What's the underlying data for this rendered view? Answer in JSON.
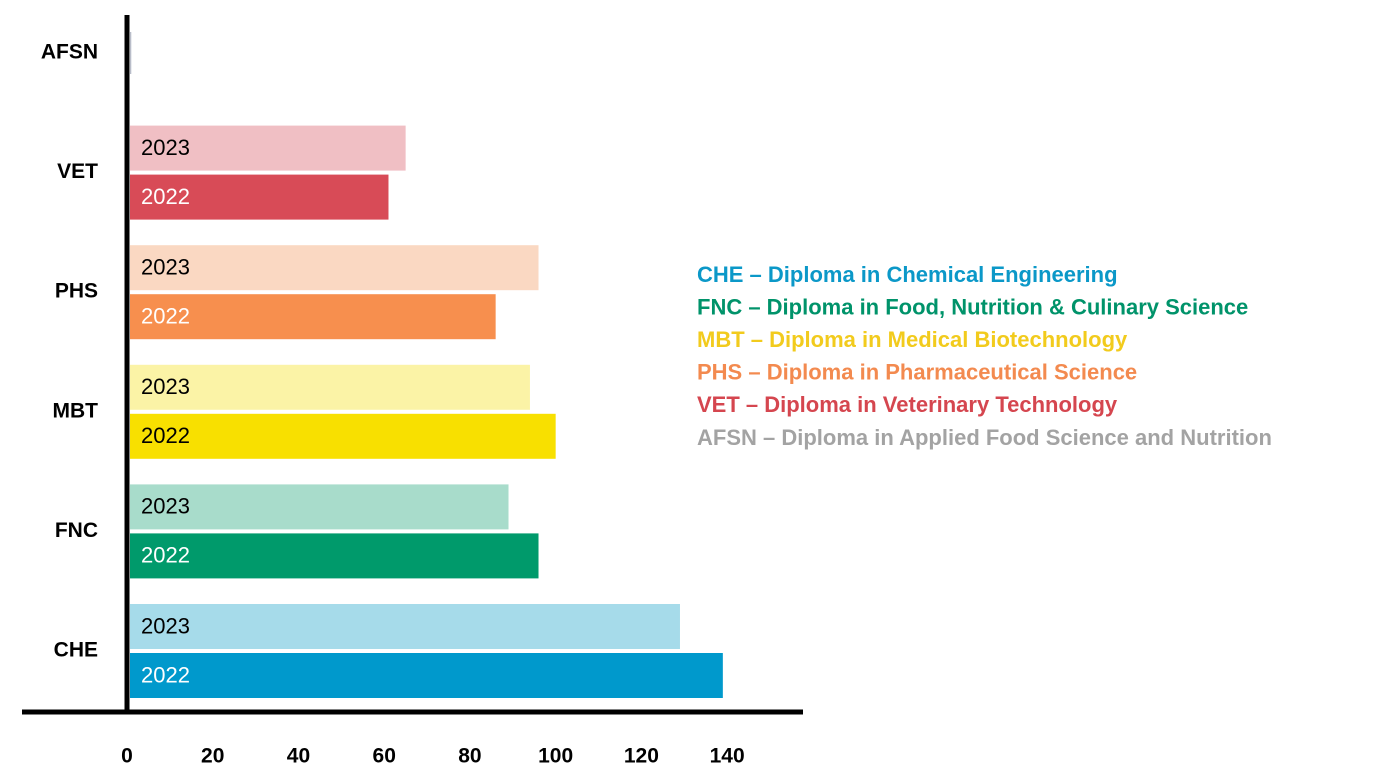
{
  "chart_data": {
    "type": "barh",
    "categories": [
      "AFSN",
      "VET",
      "PHS",
      "MBT",
      "FNC",
      "CHE"
    ],
    "series": [
      {
        "name": "2023",
        "colors": [
          "#b9bdc9",
          "#f0bfc4",
          "#fad8c2",
          "#fbf3a6",
          "#a8dccb",
          "#a6dbea"
        ],
        "label_colors": [
          "#000000",
          "#000000",
          "#000000",
          "#000000",
          "#000000",
          "#000000"
        ],
        "values": [
          null,
          65,
          96,
          94,
          89,
          129
        ]
      },
      {
        "name": "2022",
        "colors": [
          "#b9bdc9",
          "#d84b57",
          "#f78f4e",
          "#f8e000",
          "#009a6b",
          "#0099cc"
        ],
        "label_colors": [
          "#ffffff",
          "#ffffff",
          "#ffffff",
          "#000000",
          "#ffffff",
          "#ffffff"
        ],
        "values": [
          1,
          61,
          86,
          100,
          96,
          139
        ]
      }
    ],
    "xlim": [
      0,
      157
    ],
    "xticks": [
      0,
      20,
      40,
      60,
      80,
      100,
      120,
      140
    ],
    "legend": [
      {
        "text": "CHE – Diploma in Chemical Engineering",
        "color": "#0b98c8"
      },
      {
        "text": "FNC – Diploma in Food, Nutrition & Culinary Science",
        "color": "#00936a"
      },
      {
        "text": "MBT – Diploma in Medical Biotechnology",
        "color": "#f2cb1d"
      },
      {
        "text": "PHS – Diploma in Pharmaceutical Science",
        "color": "#f38a4f"
      },
      {
        "text": "VET – Diploma in Veterinary Technology",
        "color": "#d5464f"
      },
      {
        "text": "AFSN – Diploma in Applied Food Science and Nutrition",
        "color": "#a3a3a3"
      }
    ]
  }
}
